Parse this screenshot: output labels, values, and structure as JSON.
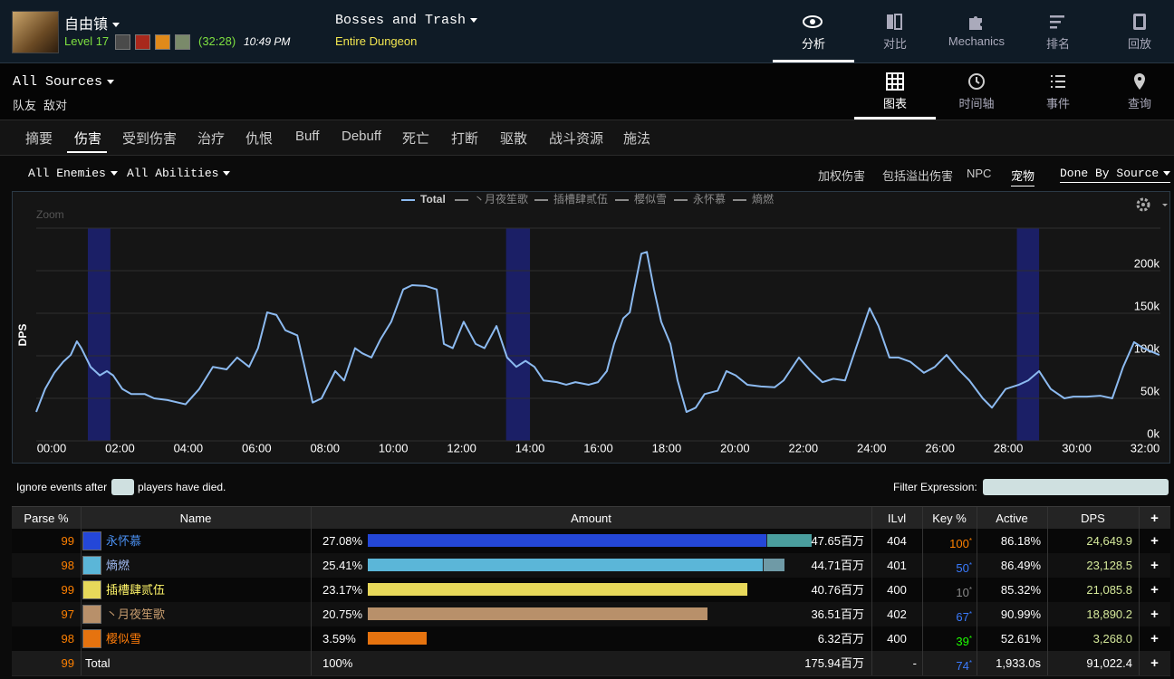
{
  "header": {
    "player": "自由镇",
    "level": "Level 17",
    "duration": "(32:28)",
    "time": "10:49 PM",
    "fight": "Bosses and Trash",
    "zone": "Entire Dungeon",
    "nav": [
      "分析",
      "对比",
      "Mechanics",
      "排名",
      "回放"
    ]
  },
  "subbar": {
    "source": "All Sources",
    "filters": [
      "队友",
      "敌对"
    ],
    "views": [
      "图表",
      "时间轴",
      "事件",
      "查询"
    ]
  },
  "tabs": [
    "摘要",
    "伤害",
    "受到伤害",
    "治疗",
    "仇恨",
    "Buff",
    "Debuff",
    "死亡",
    "打断",
    "驱散",
    "战斗资源",
    "施法"
  ],
  "filters": {
    "enemies": "All Enemies",
    "abilities": "All Abilities",
    "options": [
      "加权伤害",
      "包括溢出伤害",
      "NPC",
      "宠物"
    ],
    "mode": "Done By Source"
  },
  "chart_data": {
    "type": "line",
    "zoom": "Zoom",
    "y_label": "DPS",
    "x": [
      -0.45,
      -0.19,
      0.08,
      0.34,
      0.56,
      0.74,
      0.87,
      1.14,
      1.41,
      1.62,
      1.8,
      2.07,
      2.33,
      2.73,
      3.0,
      3.39,
      3.92,
      4.32,
      4.72,
      5.12,
      5.43,
      5.78,
      6.04,
      6.31,
      6.58,
      6.84,
      7.19,
      7.37,
      7.64,
      7.9,
      8.3,
      8.56,
      8.88,
      9.09,
      9.36,
      9.62,
      9.94,
      10.29,
      10.55,
      10.95,
      11.27,
      11.48,
      11.74,
      12.06,
      12.41,
      12.67,
      13.02,
      13.33,
      13.6,
      13.87,
      14.13,
      14.4,
      14.79,
      15.06,
      15.33,
      15.72,
      15.99,
      16.25,
      16.46,
      16.73,
      16.92,
      17.05,
      17.26,
      17.42,
      17.63,
      17.84,
      18.11,
      18.32,
      18.58,
      18.85,
      19.11,
      19.49,
      19.75,
      20.02,
      20.36,
      20.76,
      21.16,
      21.42,
      21.87,
      22.22,
      22.56,
      22.88,
      23.22,
      23.54,
      23.94,
      24.2,
      24.52,
      24.79,
      25.13,
      25.53,
      25.85,
      26.19,
      26.54,
      26.86,
      27.25,
      27.52,
      27.92,
      28.31,
      28.58,
      28.9,
      29.24,
      29.64,
      29.9,
      30.3,
      30.7,
      31.04,
      31.36,
      31.68,
      31.95,
      32.42
    ],
    "series": [
      {
        "name": "Total",
        "color": "#8cbaf0",
        "values": [
          34000,
          61000,
          80000,
          93000,
          101000,
          117000,
          109000,
          87000,
          77000,
          82000,
          77000,
          61000,
          55000,
          55000,
          50000,
          48000,
          43000,
          61000,
          87000,
          84000,
          98000,
          87000,
          109000,
          151000,
          148000,
          130000,
          124000,
          93000,
          45000,
          50000,
          82000,
          71000,
          109000,
          103000,
          98000,
          119000,
          140000,
          178000,
          183000,
          182000,
          178000,
          114000,
          109000,
          140000,
          114000,
          109000,
          135000,
          98000,
          87000,
          94000,
          87000,
          71000,
          69000,
          66000,
          69000,
          66000,
          69000,
          82000,
          114000,
          144000,
          151000,
          178000,
          220000,
          222000,
          178000,
          140000,
          114000,
          71000,
          34000,
          39000,
          55000,
          59000,
          82000,
          77000,
          66000,
          64000,
          63000,
          71000,
          98000,
          82000,
          69000,
          73000,
          71000,
          109000,
          156000,
          135000,
          98000,
          98000,
          93000,
          80000,
          87000,
          101000,
          84000,
          71000,
          50000,
          39000,
          61000,
          66000,
          71000,
          82000,
          61000,
          50000,
          52000,
          52000,
          53000,
          50000,
          87000,
          116000,
          109000,
          101000
        ]
      }
    ],
    "other_series": [
      {
        "name": "丶月夜笙歌",
        "color": "#8a8a8a"
      },
      {
        "name": "插槽肆贰伍",
        "color": "#8a8a8a"
      },
      {
        "name": "樱似雪",
        "color": "#8a8a8a"
      },
      {
        "name": "永怀慕",
        "color": "#8a8a8a"
      },
      {
        "name": "熵燃",
        "color": "#8a8a8a"
      }
    ],
    "highlight_ranges": [
      [
        1.06,
        1.72
      ],
      [
        13.3,
        14.0
      ],
      [
        28.25,
        28.9
      ]
    ],
    "highlight_color": "#1b1f66",
    "xlim": [
      -0.45,
      32.45
    ],
    "xticks": [
      {
        "value": 0,
        "label": "00:00"
      },
      {
        "value": 2,
        "label": "02:00"
      },
      {
        "value": 4,
        "label": "04:00"
      },
      {
        "value": 6,
        "label": "06:00"
      },
      {
        "value": 8,
        "label": "08:00"
      },
      {
        "value": 10,
        "label": "10:00"
      },
      {
        "value": 12,
        "label": "12:00"
      },
      {
        "value": 14,
        "label": "14:00"
      },
      {
        "value": 16,
        "label": "16:00"
      },
      {
        "value": 18,
        "label": "18:00"
      },
      {
        "value": 20,
        "label": "20:00"
      },
      {
        "value": 22,
        "label": "22:00"
      },
      {
        "value": 24,
        "label": "24:00"
      },
      {
        "value": 26,
        "label": "26:00"
      },
      {
        "value": 28,
        "label": "28:00"
      },
      {
        "value": 30,
        "label": "30:00"
      },
      {
        "value": 32,
        "label": "32:00"
      }
    ],
    "ylim": [
      0,
      250000
    ],
    "yticks": [
      {
        "value": 0,
        "label": "0k"
      },
      {
        "value": 50000,
        "label": "50k"
      },
      {
        "value": 100000,
        "label": "100k"
      },
      {
        "value": 150000,
        "label": "150k"
      },
      {
        "value": 200000,
        "label": "200k"
      }
    ],
    "grid": true
  },
  "death_filter": {
    "before": "Ignore events after",
    "after": "players have died."
  },
  "filter_expression": "Filter Expression:",
  "table": {
    "columns": [
      "Parse %",
      "Name",
      "Amount",
      "ILvl",
      "Key %",
      "Active",
      "DPS",
      "+"
    ],
    "key_marker": "*",
    "rows": [
      {
        "parse": 99,
        "name": "永怀慕",
        "name_color": "#4a8ff0",
        "percent": "27.08%",
        "amount": 47.65,
        "amount_label": "47.65百万",
        "pet_amount": 4.85,
        "bar_color": "#2447d8",
        "pet_color": "#4a9e9e",
        "ilvl": 404,
        "key": 100,
        "key_color": "#ff8000",
        "active": "86.18%",
        "dps": "24,649.9"
      },
      {
        "parse": 98,
        "name": "熵燃",
        "name_color": "#9fb8f0",
        "percent": "25.41%",
        "amount": 44.71,
        "amount_label": "44.71百万",
        "pet_amount": 2.33,
        "bar_color": "#5bb6d8",
        "pet_color": "#6f9aa6",
        "ilvl": 401,
        "key": 50,
        "key_color": "#3a7bff",
        "active": "86.49%",
        "dps": "23,128.5"
      },
      {
        "parse": 99,
        "name": "插槽肆贰伍",
        "name_color": "#fff569",
        "percent": "23.17%",
        "amount": 40.76,
        "amount_label": "40.76百万",
        "bar_color": "#e8d95a",
        "ilvl": 400,
        "key": 10,
        "key_color": "#8a8a8a",
        "active": "85.32%",
        "dps": "21,085.8"
      },
      {
        "parse": 97,
        "name": "丶月夜笙歌",
        "name_color": "#c79c6e",
        "percent": "20.75%",
        "amount": 36.51,
        "amount_label": "36.51百万",
        "bar_color": "#b8906a",
        "ilvl": 402,
        "key": 67,
        "key_color": "#3a7bff",
        "active": "90.99%",
        "dps": "18,890.2"
      },
      {
        "parse": 98,
        "name": "樱似雪",
        "name_color": "#ff7d0a",
        "percent": "3.59%",
        "amount": 6.32,
        "amount_label": "6.32百万",
        "bar_color": "#e6730f",
        "ilvl": 400,
        "key": 39,
        "key_color": "#1eff00",
        "active": "52.61%",
        "dps": "3,268.0"
      }
    ],
    "total": {
      "parse": 99,
      "name": "Total",
      "percent": "100%",
      "amount_label": "175.94百万",
      "ilvl": "-",
      "key": 74,
      "key_color": "#3a7bff",
      "active": "1,933.0s",
      "dps": "91,022.4"
    }
  }
}
